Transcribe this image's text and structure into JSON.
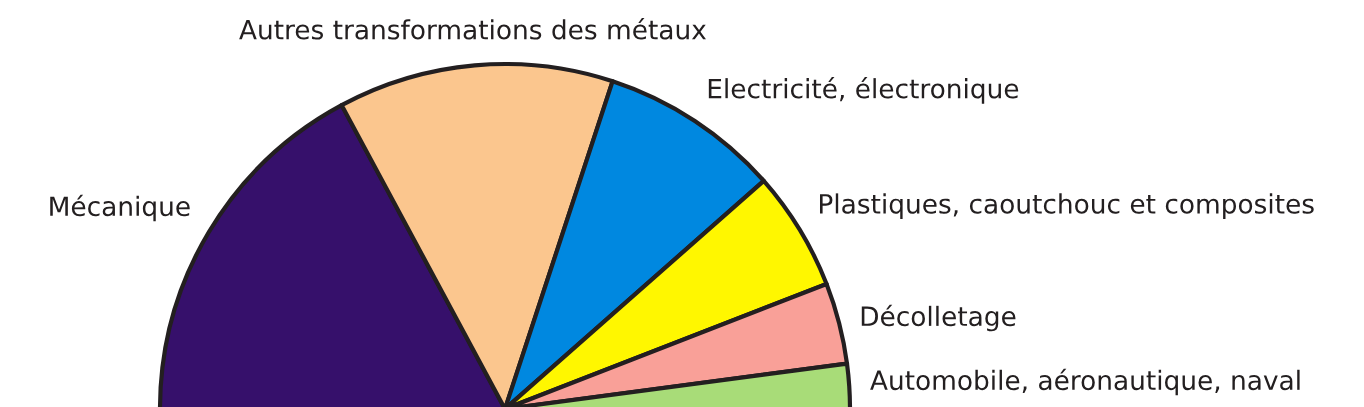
{
  "chart_data": {
    "type": "pie",
    "categories": [
      "Mécanique",
      "Autres transformations des métaux",
      "Electricité, électronique",
      "Plastiques, caoutchouc et composites",
      "Décolletage",
      "Automobile, aéronautique, naval"
    ],
    "values": [
      34.3,
      25.8,
      16.9,
      11.2,
      7.6,
      4.2
    ],
    "colors": [
      "#36106b",
      "#fbc68e",
      "#0088e0",
      "#fff700",
      "#f9a098",
      "#a8dc78"
    ]
  }
}
